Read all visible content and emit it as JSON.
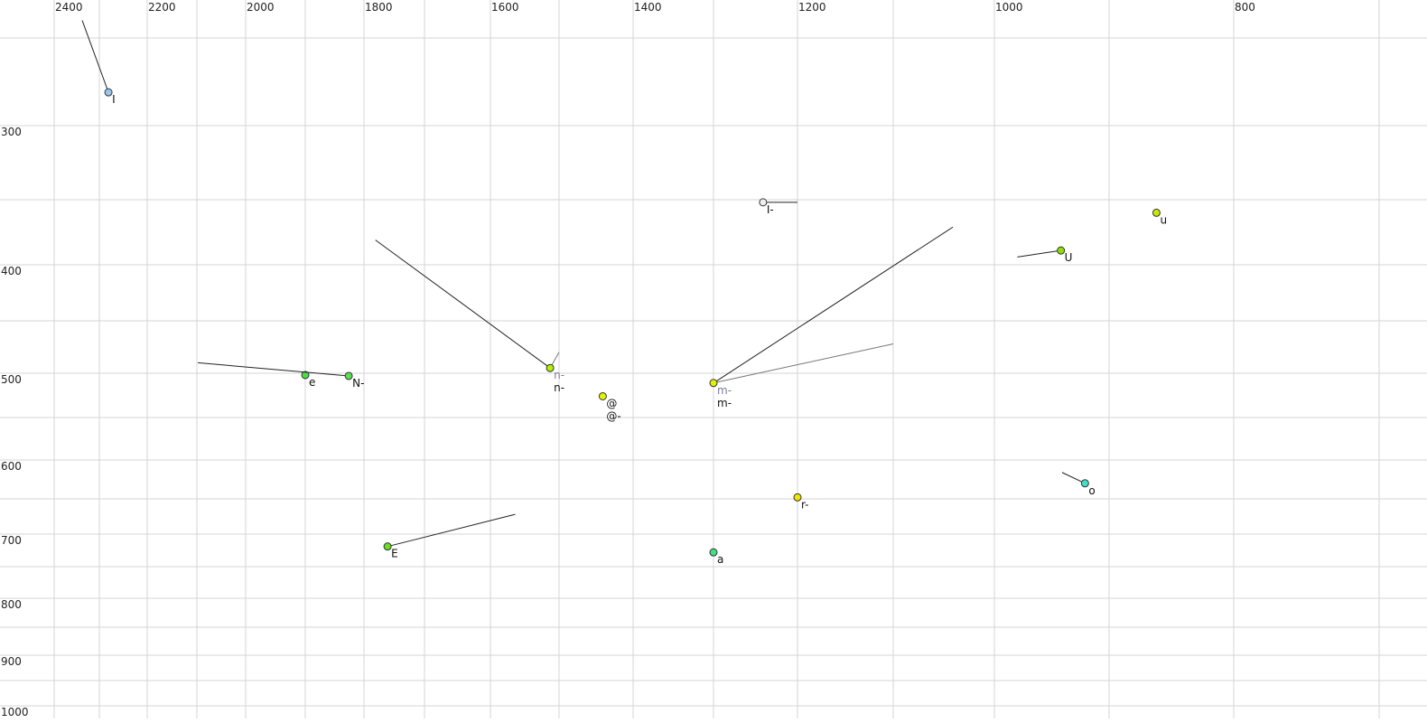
{
  "chart_data": {
    "type": "scatter",
    "title": "",
    "xlabel": "",
    "ylabel": "",
    "x_reversed": true,
    "x_scale": "nonlinear (auditory)",
    "y_scale": "nonlinear (auditory)",
    "xlim": [
      2450,
      700
    ],
    "ylim": [
      240,
      1000
    ],
    "grid": true,
    "x_grid": [
      2400,
      2300,
      2200,
      2100,
      2000,
      1900,
      1800,
      1700,
      1600,
      1500,
      1400,
      1300,
      1200,
      1100,
      1000,
      900,
      800,
      700
    ],
    "y_grid": [
      250,
      300,
      350,
      400,
      450,
      500,
      550,
      600,
      650,
      700,
      750,
      800,
      850,
      900,
      950,
      1000
    ],
    "x_tick_labels": [
      "2400",
      "2200",
      "2000",
      "1800",
      "1600",
      "1400",
      "1200",
      "1000",
      "800"
    ],
    "y_tick_labels": [
      "300",
      "400",
      "500",
      "600",
      "700",
      "800",
      "900",
      "1000"
    ],
    "points": [
      {
        "labels": [
          "I"
        ],
        "x": 2281,
        "y": 281,
        "color": "#9cc4f0",
        "tails": [
          [
            2338,
            240
          ]
        ]
      },
      {
        "labels": [
          "I-"
        ],
        "x": 1241,
        "y": 352,
        "color": "#f0f0f0",
        "tails": [
          [
            1200,
            352
          ]
        ]
      },
      {
        "labels": [
          "u"
        ],
        "x": 862,
        "y": 360,
        "color": "#c8e800",
        "tails": []
      },
      {
        "labels": [
          "U"
        ],
        "x": 942,
        "y": 389,
        "color": "#8ce000",
        "tails": [
          [
            980,
            394
          ]
        ]
      },
      {
        "labels": [
          "e"
        ],
        "x": 1900,
        "y": 502,
        "color": "#48e048",
        "tails": []
      },
      {
        "labels": [
          "N-"
        ],
        "x": 1826,
        "y": 503,
        "color": "#58e050",
        "tails": [
          [
            2098,
            490
          ]
        ]
      },
      {
        "labels": [
          "n-",
          "n-"
        ],
        "x": 1513,
        "y": 495,
        "color": "#b0f000",
        "tails": [
          [
            1781,
            381
          ],
          [
            1500,
            480
          ]
        ]
      },
      {
        "labels": [
          "@",
          "@-"
        ],
        "x": 1441,
        "y": 526,
        "color": "#e4f400",
        "tails": []
      },
      {
        "labels": [
          "m-",
          "m-"
        ],
        "x": 1300,
        "y": 511,
        "color": "#e0f400",
        "tails": [
          [
            1041,
            371
          ],
          [
            1100,
            472
          ]
        ]
      },
      {
        "labels": [
          "r-"
        ],
        "x": 1200,
        "y": 648,
        "color": "#f0e400",
        "tails": []
      },
      {
        "labels": [
          "o"
        ],
        "x": 921,
        "y": 630,
        "color": "#40e0c8",
        "tails": [
          [
            941,
            616
          ]
        ]
      },
      {
        "labels": [
          "E"
        ],
        "x": 1761,
        "y": 719,
        "color": "#68e020",
        "tails": [
          [
            1564,
            672
          ]
        ]
      },
      {
        "labels": [
          "a"
        ],
        "x": 1300,
        "y": 728,
        "color": "#40e088",
        "tails": []
      }
    ]
  }
}
